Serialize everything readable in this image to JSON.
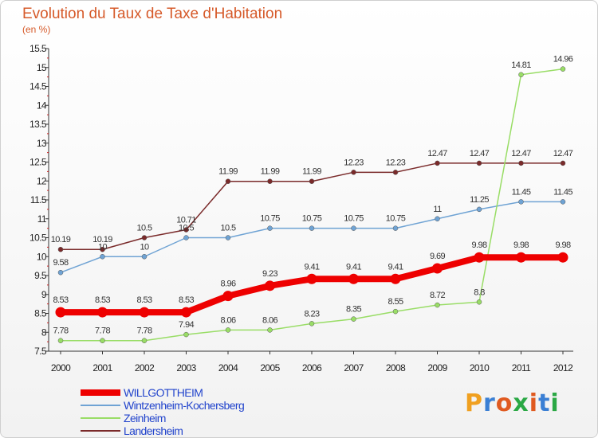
{
  "header": {
    "title": "Evolution du Taux de Taxe d'Habitation",
    "units": "(en %)"
  },
  "logo": {
    "letters": [
      "P",
      "r",
      "o",
      "x",
      "i",
      "t",
      "i"
    ],
    "colors": [
      "#f0a020",
      "#3a7fd4",
      "#e05a20",
      "#2aa844",
      "#e05a20",
      "#3a7fd4",
      "#2aa844"
    ]
  },
  "chart_data": {
    "type": "line",
    "title": "Evolution du Taux de Taxe d'Habitation",
    "ylabel": "(en %)",
    "x": [
      "2000",
      "2001",
      "2002",
      "2003",
      "2004",
      "2005",
      "2006",
      "2007",
      "2008",
      "2009",
      "2010",
      "2011",
      "2012"
    ],
    "ylim": [
      7.5,
      15.5
    ],
    "yticks": [
      "7.5",
      "8",
      "8.5",
      "9",
      "9.5",
      "10",
      "10.5",
      "11",
      "11.5",
      "12",
      "12.5",
      "13",
      "13.5",
      "14",
      "14.5",
      "15",
      "15.5"
    ],
    "grid": false,
    "legend_position": "bottom-left",
    "series": [
      {
        "name": "WILLGOTTHEIM",
        "color": "#ee0000",
        "values": [
          8.53,
          8.53,
          8.53,
          8.53,
          8.96,
          9.23,
          9.41,
          9.41,
          9.41,
          9.69,
          9.98,
          9.98,
          9.98
        ],
        "labels": [
          "8.53",
          "8.53",
          "8.53",
          "8.53",
          "8.96",
          "9.23",
          "9.41",
          "9.41",
          "9.41",
          "9.69",
          "9.98",
          "9.98",
          "9.98"
        ]
      },
      {
        "name": "Wintzenheim-Kochersberg",
        "color": "#6fa3d4",
        "values": [
          9.58,
          10,
          10,
          10.5,
          10.5,
          10.75,
          10.75,
          10.75,
          10.75,
          11,
          11.25,
          11.45,
          11.45
        ],
        "labels": [
          "9.58",
          "10",
          "10",
          "10.5",
          "10.5",
          "10.75",
          "10.75",
          "10.75",
          "10.75",
          "11",
          "11.25",
          "11.45",
          "11.45"
        ]
      },
      {
        "name": "Zeinheim",
        "color": "#99dd66",
        "values": [
          7.78,
          7.78,
          7.78,
          7.94,
          8.06,
          8.06,
          8.23,
          8.35,
          8.55,
          8.72,
          8.8,
          14.81,
          14.96
        ],
        "labels": [
          "7.78",
          "7.78",
          "7.78",
          "7.94",
          "8.06",
          "8.06",
          "8.23",
          "8.35",
          "8.55",
          "8.72",
          "8.8",
          "14.81",
          "14.96"
        ]
      },
      {
        "name": "Landersheim",
        "color": "#7a2a2a",
        "values": [
          10.19,
          10.19,
          10.5,
          10.71,
          11.99,
          11.99,
          11.99,
          12.23,
          12.23,
          12.47,
          12.47,
          12.47,
          12.47
        ],
        "labels": [
          "10.19",
          "10.19",
          "10.5",
          "10.71",
          "11.99",
          "11.99",
          "11.99",
          "12.23",
          "12.23",
          "12.47",
          "12.47",
          "12.47",
          "12.47"
        ]
      }
    ]
  }
}
